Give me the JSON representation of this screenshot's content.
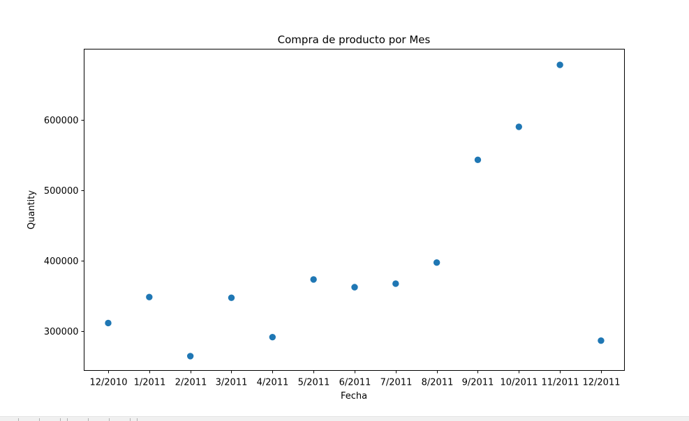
{
  "chart_data": {
    "type": "scatter",
    "title": "Compra de producto por Mes",
    "xlabel": "Fecha",
    "ylabel": "Quantity",
    "categories": [
      "12/2010",
      "1/2011",
      "2/2011",
      "3/2011",
      "4/2011",
      "5/2011",
      "6/2011",
      "7/2011",
      "8/2011",
      "9/2011",
      "10/2011",
      "11/2011",
      "12/2011"
    ],
    "series": [
      {
        "values": [
          311000,
          348000,
          264000,
          347000,
          291000,
          373000,
          362000,
          367000,
          397000,
          543000,
          590000,
          678000,
          286000
        ]
      }
    ],
    "yticks": [
      300000,
      400000,
      500000,
      600000
    ],
    "ylim": [
      243600,
      700400
    ],
    "grid": false,
    "marker_color": "#1f77b4"
  }
}
